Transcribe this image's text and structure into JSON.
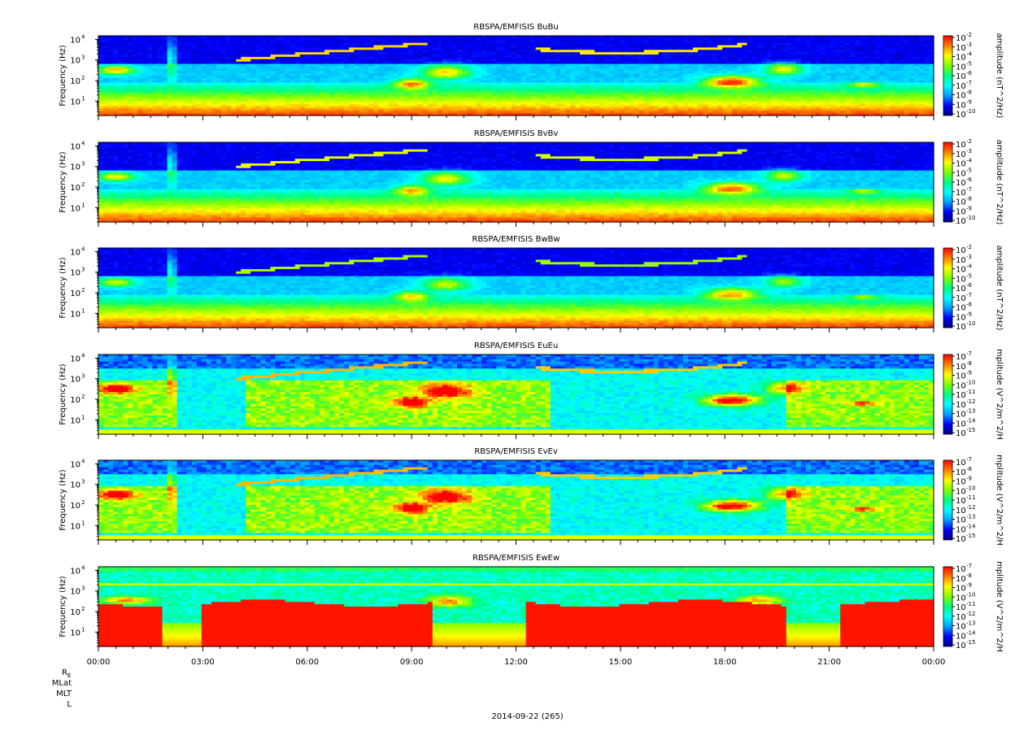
{
  "chart_data": {
    "type": "heatmap",
    "date_label": "2014-09-22 (265)",
    "x_range": [
      "00:00",
      "00:00"
    ],
    "x_ticks": [
      "00:00",
      "03:00",
      "06:00",
      "09:00",
      "12:00",
      "15:00",
      "18:00",
      "21:00",
      "00:00"
    ],
    "orbit_labels": [
      "R_E",
      "MLat",
      "MLT",
      "L"
    ],
    "y_scale": "log",
    "y_range_hz": [
      2,
      15000
    ],
    "y_tick_exponents": [
      "4",
      "3",
      "2",
      "1"
    ],
    "colormap": [
      "#000080",
      "#0000ff",
      "#00a0ff",
      "#00ffff",
      "#00ff80",
      "#80ff00",
      "#ffff00",
      "#ff8000",
      "#ff0000"
    ],
    "panels": [
      {
        "title": "RBSPA/EMFISIS  BuBu",
        "ylabel": "Frequency (Hz)",
        "cb_label": "amplitude (nT^2/Hz)",
        "cb_exponents": [
          "-2",
          "-3",
          "-4",
          "-5",
          "-6",
          "-7",
          "-8",
          "-9",
          "-10"
        ],
        "regime": "B",
        "hot": 0.95
      },
      {
        "title": "RBSPA/EMFISIS  BvBv",
        "ylabel": "Frequency (Hz)",
        "cb_label": "amplitude (nT^2/Hz)",
        "cb_exponents": [
          "-2",
          "-3",
          "-4",
          "-5",
          "-6",
          "-7",
          "-8",
          "-9",
          "-10"
        ],
        "regime": "B",
        "hot": 0.85
      },
      {
        "title": "RBSPA/EMFISIS  BwBw",
        "ylabel": "Frequency (Hz)",
        "cb_label": "amplitude (nT^2/Hz)",
        "cb_exponents": [
          "-2",
          "-3",
          "-4",
          "-5",
          "-6",
          "-7",
          "-8",
          "-9",
          "-10"
        ],
        "regime": "B",
        "hot": 0.75
      },
      {
        "title": "RBSPA/EMFISIS  EuEu",
        "ylabel": "Frequency (Hz)",
        "cb_label": "mplitude (V^2/m^2/H",
        "cb_exponents": [
          "-7",
          "-8",
          "-9",
          "-10",
          "-11",
          "-12",
          "-13",
          "-14",
          "-15"
        ],
        "regime": "E",
        "hot": 1.0
      },
      {
        "title": "RBSPA/EMFISIS  EvEv",
        "ylabel": "Frequency (Hz)",
        "cb_label": "mplitude (V^2/m^2/H",
        "cb_exponents": [
          "-7",
          "-8",
          "-9",
          "-10",
          "-11",
          "-12",
          "-13",
          "-14",
          "-15"
        ],
        "regime": "E",
        "hot": 1.0
      },
      {
        "title": "RBSPA/EMFISIS  EwEw",
        "ylabel": "Frequency (Hz)",
        "cb_label": "mplitude (V^2/m^2/H",
        "cb_exponents": [
          "-7",
          "-8",
          "-9",
          "-10",
          "-11",
          "-12",
          "-13",
          "-14",
          "-15"
        ],
        "regime": "W",
        "hot": 1.0
      }
    ]
  }
}
